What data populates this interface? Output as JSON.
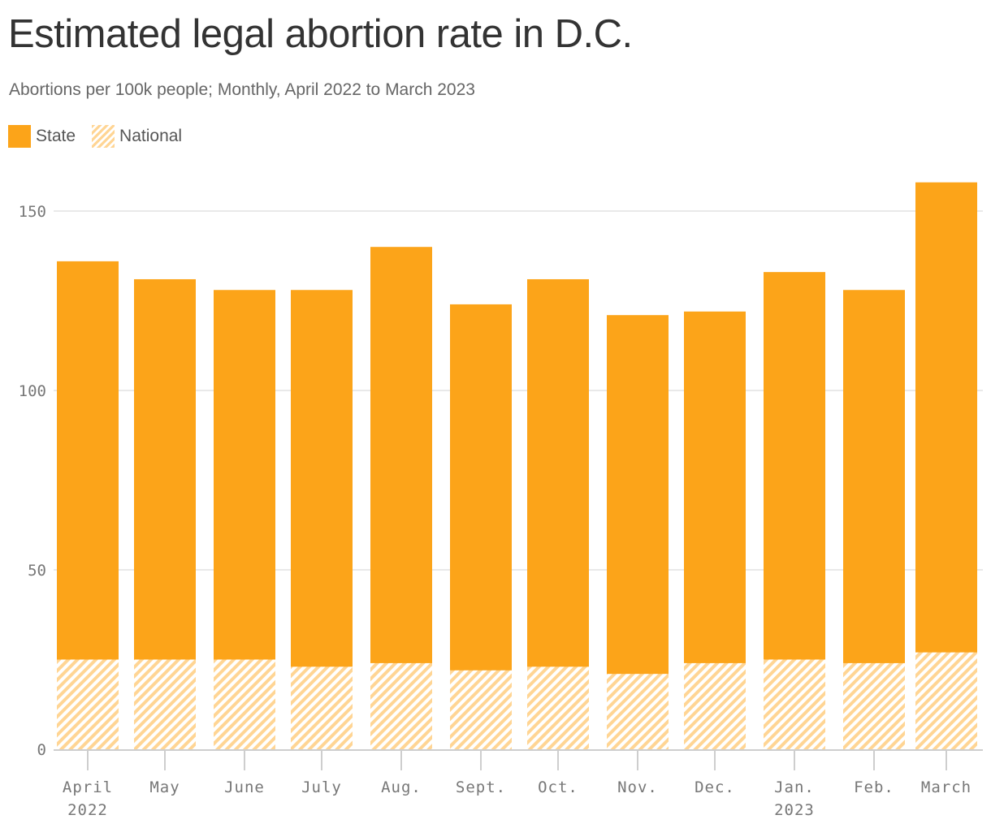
{
  "title": "Estimated legal abortion rate in D.C.",
  "subtitle": "Abortions per 100k people; Monthly, April 2022 to March 2023",
  "legend": {
    "state_label": "State",
    "national_label": "National"
  },
  "colors": {
    "state": "#fca419",
    "national_hatch": "#ffd594",
    "gridline": "#e2e2e2",
    "text": "#333333"
  },
  "chart_data": {
    "type": "bar",
    "categories": [
      "April",
      "May",
      "June",
      "July",
      "Aug.",
      "Sept.",
      "Oct.",
      "Nov.",
      "Dec.",
      "Jan.",
      "Feb.",
      "March"
    ],
    "category_sublabels": [
      "2022",
      "",
      "",
      "",
      "",
      "",
      "",
      "",
      "",
      "2023",
      "",
      ""
    ],
    "series": [
      {
        "name": "State",
        "values": [
          136,
          131,
          128,
          128,
          140,
          124,
          131,
          121,
          122,
          133,
          128,
          158
        ]
      },
      {
        "name": "National",
        "values": [
          25,
          25,
          25,
          23,
          24,
          22,
          23,
          21,
          24,
          25,
          24,
          27
        ]
      }
    ],
    "title": "Estimated legal abortion rate in D.C.",
    "xlabel": "",
    "ylabel": "",
    "ylim": [
      0,
      158
    ],
    "yticks": [
      0,
      50,
      100,
      150
    ],
    "grid": true,
    "legend_position": "top-left",
    "overlap": "national series drawn over the base of each state bar"
  }
}
